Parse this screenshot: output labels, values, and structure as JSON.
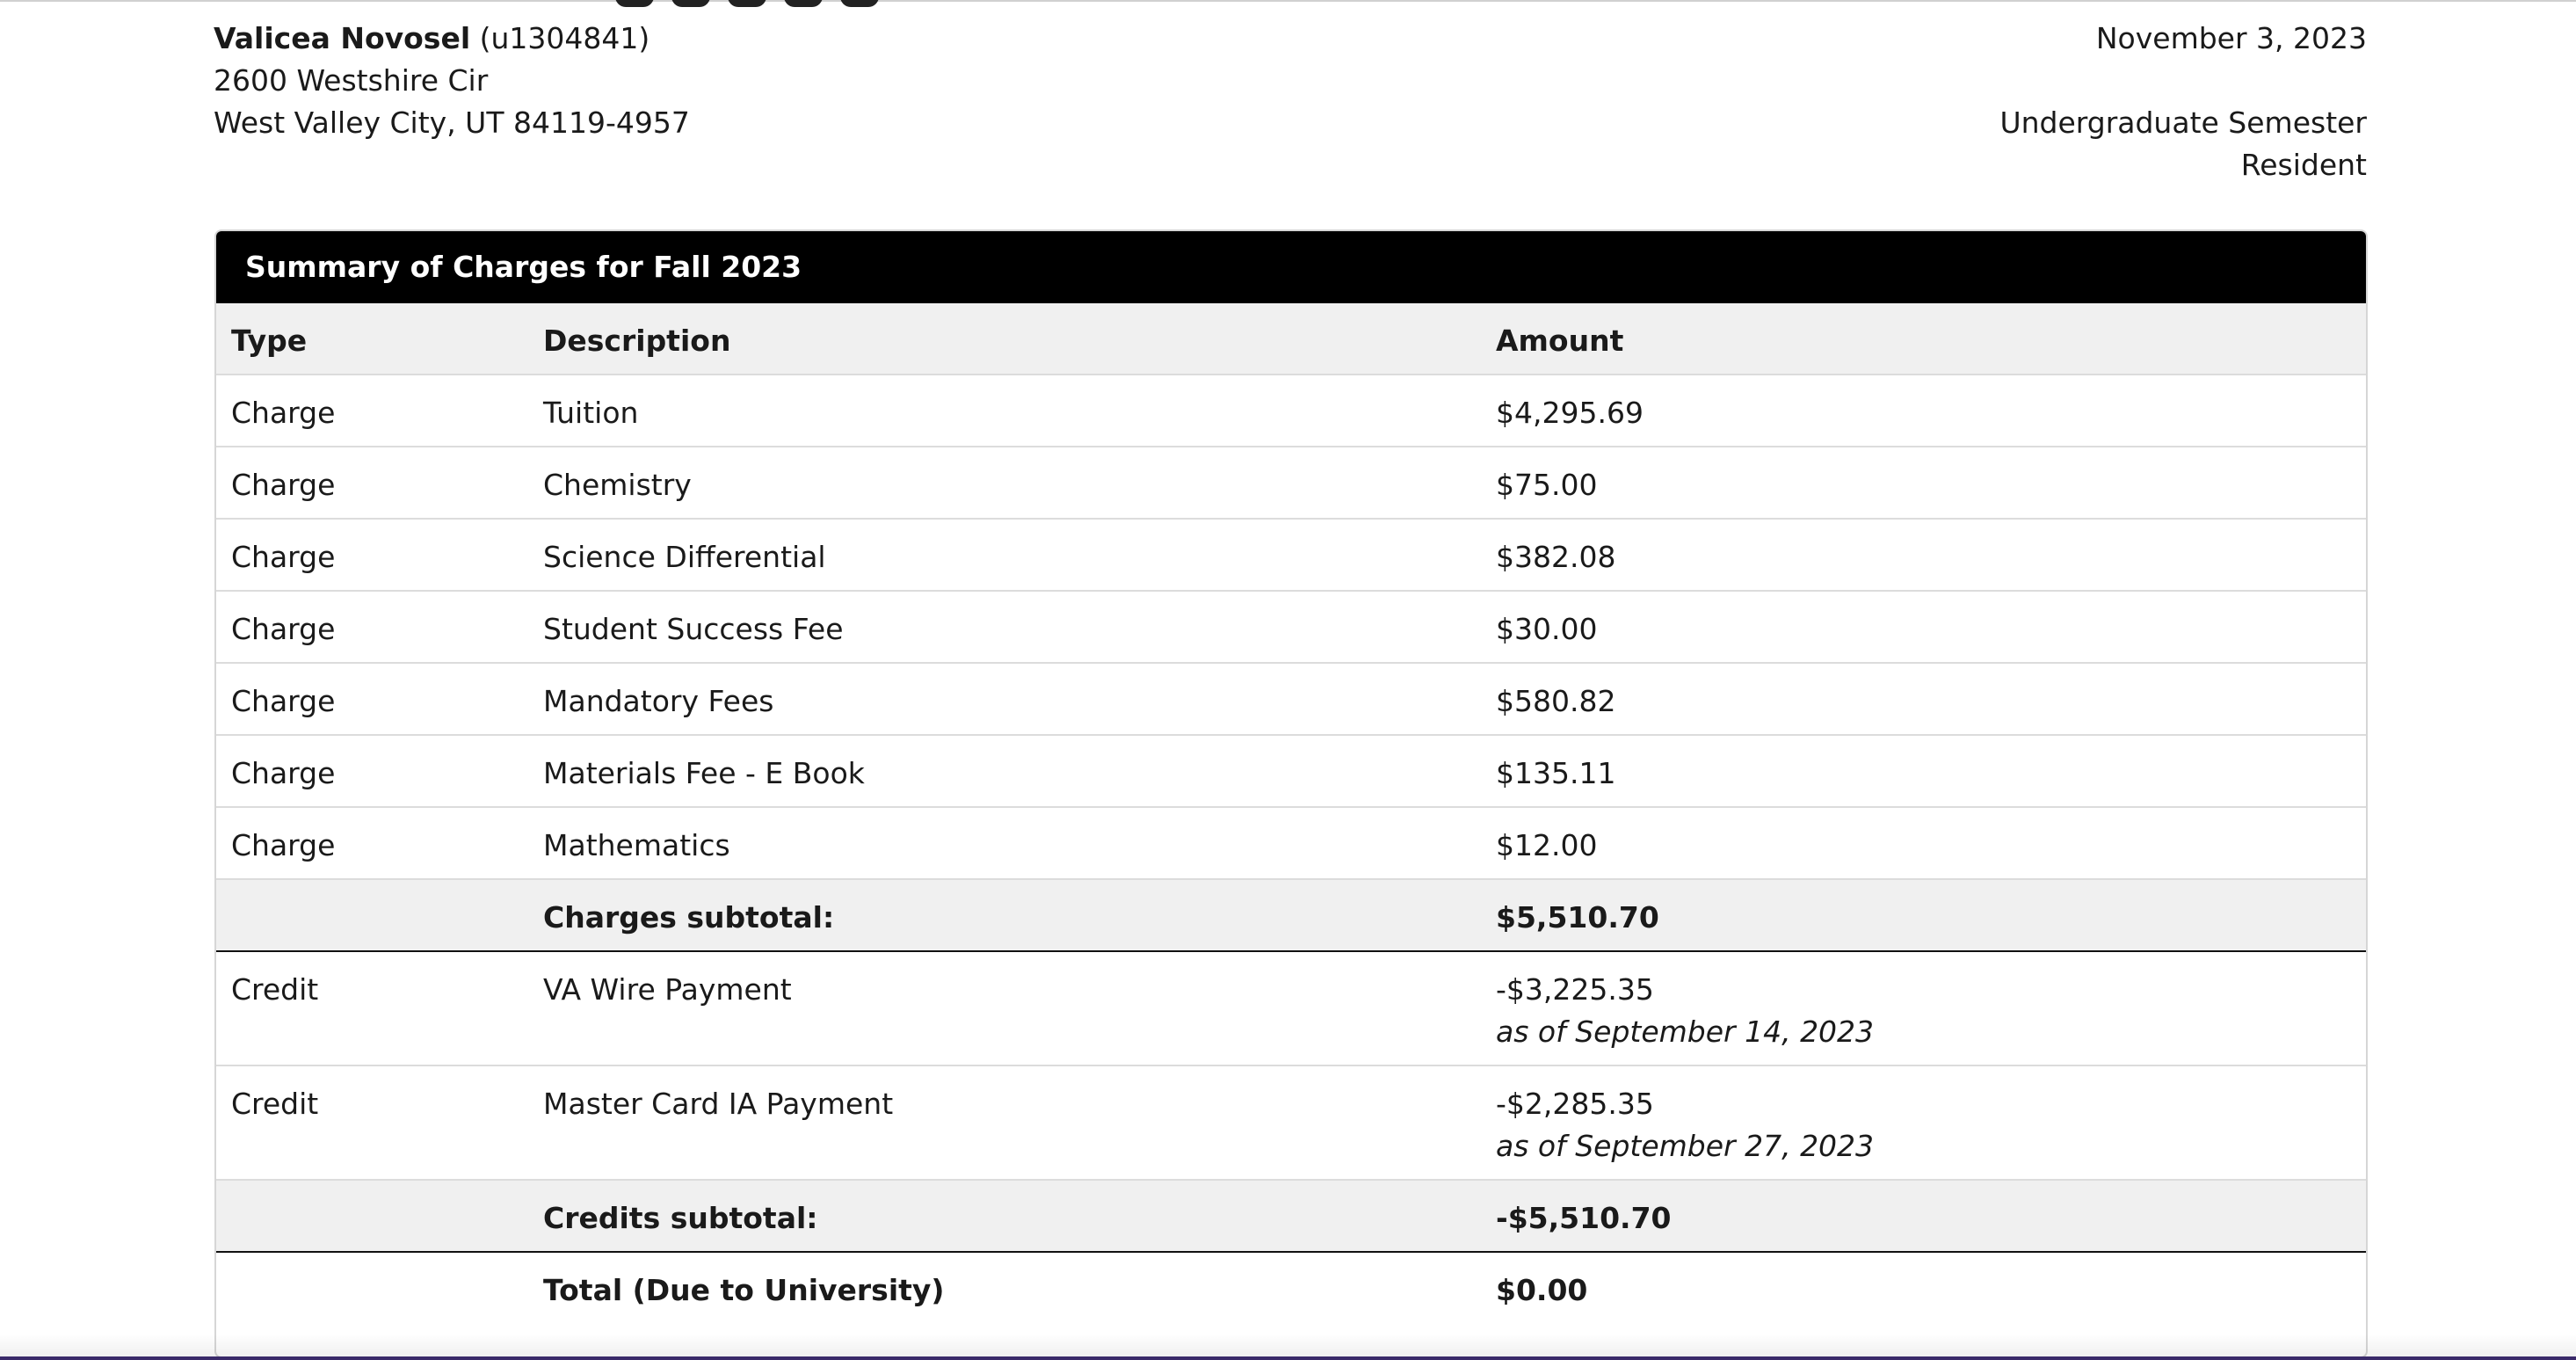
{
  "customer": {
    "name": "Valicea Novosel",
    "id": "(u1304841)",
    "address_line1": "2600 Westshire Cir",
    "address_line2": "West Valley City, UT 84119-4957"
  },
  "meta": {
    "date": "November 3, 2023",
    "program": "Undergraduate Semester",
    "residency": "Resident"
  },
  "summary": {
    "title": "Summary of Charges for Fall 2023",
    "columns": [
      "Type",
      "Description",
      "Amount"
    ],
    "charges": [
      {
        "type": "Charge",
        "description": "Tuition",
        "amount": "$4,295.69"
      },
      {
        "type": "Charge",
        "description": "Chemistry",
        "amount": "$75.00"
      },
      {
        "type": "Charge",
        "description": "Science Differential",
        "amount": "$382.08"
      },
      {
        "type": "Charge",
        "description": "Student Success Fee",
        "amount": "$30.00"
      },
      {
        "type": "Charge",
        "description": "Mandatory Fees",
        "amount": "$580.82"
      },
      {
        "type": "Charge",
        "description": "Materials Fee - E Book",
        "amount": "$135.11"
      },
      {
        "type": "Charge",
        "description": "Mathematics",
        "amount": "$12.00"
      }
    ],
    "charges_subtotal_label": "Charges subtotal:",
    "charges_subtotal": "$5,510.70",
    "credits": [
      {
        "type": "Credit",
        "description": "VA Wire Payment",
        "amount": "-$3,225.35",
        "as_of": "as of September 14, 2023"
      },
      {
        "type": "Credit",
        "description": "Master Card IA Payment",
        "amount": "-$2,285.35",
        "as_of": "as of September 27, 2023"
      }
    ],
    "credits_subtotal_label": "Credits subtotal:",
    "credits_subtotal": "-$5,510.70",
    "total_label": "Total (Due to University)",
    "total": "$0.00"
  }
}
